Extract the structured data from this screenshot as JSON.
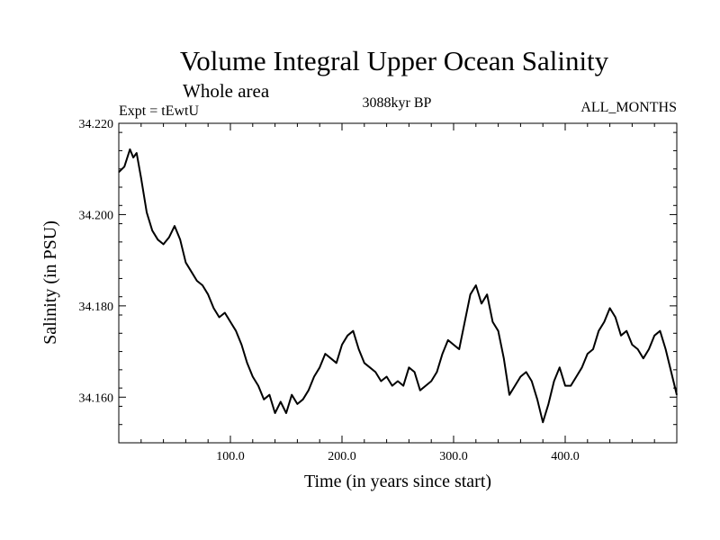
{
  "chart_data": {
    "type": "line",
    "title": "Volume Integral Upper Ocean Salinity",
    "subtitle": "Whole area",
    "experiment": "Expt = tEwtU",
    "period": "3088kyr BP",
    "months": "ALL_MONTHS",
    "xlabel": "Time (in years since start)",
    "ylabel": "Salinity (in PSU)",
    "xlim": [
      0,
      500
    ],
    "ylim": [
      34.15,
      34.22
    ],
    "xticks": [
      100,
      200,
      300,
      400
    ],
    "xtick_labels": [
      "100.0",
      "200.0",
      "300.0",
      "400.0"
    ],
    "yticks": [
      34.16,
      34.18,
      34.2,
      34.22
    ],
    "ytick_labels": [
      "34.160",
      "34.180",
      "34.200",
      "34.220"
    ],
    "series": [
      {
        "name": "salinity",
        "color": "#000000",
        "x": [
          0,
          5,
          10,
          13,
          16,
          20,
          25,
          30,
          35,
          40,
          45,
          50,
          55,
          60,
          65,
          70,
          75,
          80,
          85,
          90,
          95,
          100,
          105,
          110,
          115,
          120,
          125,
          130,
          135,
          140,
          145,
          150,
          155,
          160,
          165,
          170,
          175,
          180,
          185,
          190,
          195,
          200,
          205,
          210,
          215,
          220,
          225,
          230,
          235,
          240,
          245,
          250,
          255,
          260,
          265,
          270,
          275,
          280,
          285,
          290,
          295,
          300,
          305,
          310,
          315,
          320,
          325,
          330,
          335,
          340,
          345,
          350,
          355,
          360,
          365,
          370,
          375,
          380,
          385,
          390,
          395,
          400,
          405,
          410,
          415,
          420,
          425,
          430,
          435,
          440,
          445,
          450,
          455,
          460,
          465,
          470,
          475,
          480,
          485,
          490,
          495,
          500
        ],
        "values": [
          34.2093,
          34.2105,
          34.2143,
          34.2125,
          34.2135,
          34.208,
          34.2005,
          34.1965,
          34.1945,
          34.1935,
          34.195,
          34.1975,
          34.1945,
          34.1895,
          34.1875,
          34.1855,
          34.1845,
          34.1825,
          34.1795,
          34.1775,
          34.1785,
          34.1765,
          34.1745,
          34.1715,
          34.1675,
          34.1645,
          34.1625,
          34.1595,
          34.1605,
          34.1565,
          34.159,
          34.1565,
          34.1605,
          34.1585,
          34.1595,
          34.1615,
          34.1645,
          34.1665,
          34.1695,
          34.1685,
          34.1675,
          34.1715,
          34.1735,
          34.1745,
          34.1705,
          34.1675,
          34.1665,
          34.1655,
          34.1635,
          34.1645,
          34.1625,
          34.1635,
          34.1625,
          34.1665,
          34.1655,
          34.1615,
          34.1625,
          34.1635,
          34.1655,
          34.1695,
          34.1725,
          34.1715,
          34.1705,
          34.1765,
          34.1825,
          34.1845,
          34.1805,
          34.1825,
          34.1765,
          34.1745,
          34.1685,
          34.1605,
          34.1625,
          34.1645,
          34.1655,
          34.1635,
          34.1595,
          34.1545,
          34.1585,
          34.1635,
          34.1665,
          34.1625,
          34.1625,
          34.1645,
          34.1665,
          34.1695,
          34.1705,
          34.1745,
          34.1765,
          34.1795,
          34.1775,
          34.1735,
          34.1745,
          34.1715,
          34.1705,
          34.1685,
          34.1705,
          34.1735,
          34.1745,
          34.1705,
          34.1655,
          34.1605
        ]
      }
    ]
  }
}
